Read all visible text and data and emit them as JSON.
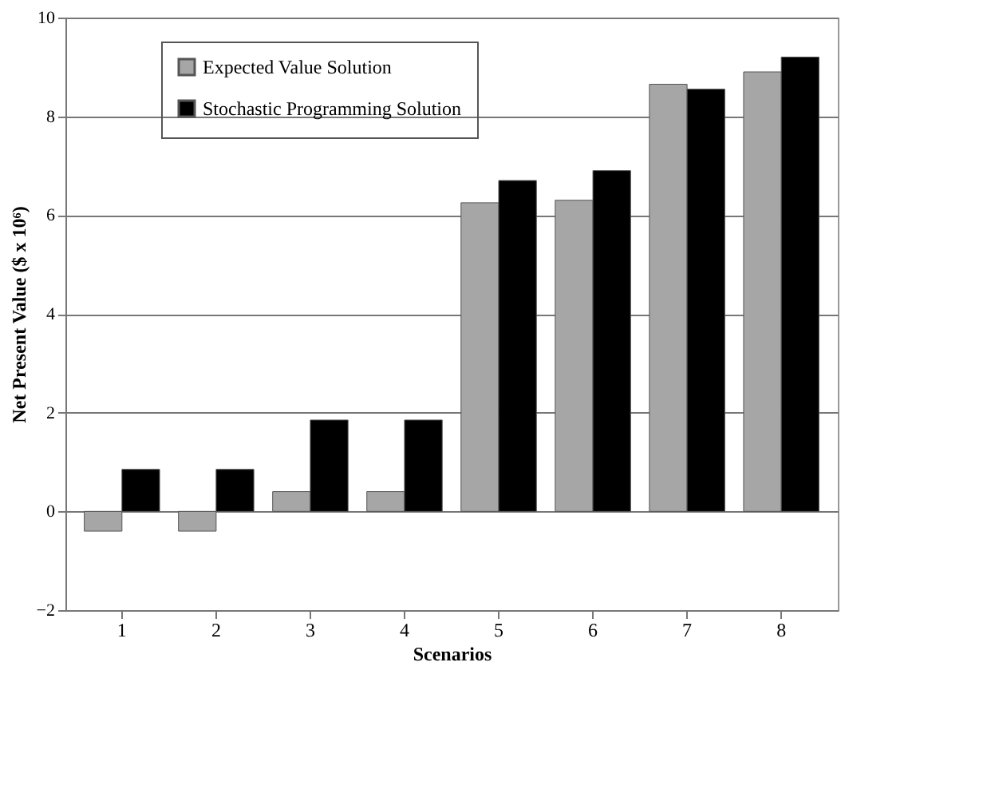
{
  "chart_data": {
    "type": "bar",
    "xlabel": "Scenarios",
    "ylabel": "Net Present Value ($ x 10⁶)",
    "categories": [
      "1",
      "2",
      "3",
      "4",
      "5",
      "6",
      "7",
      "8"
    ],
    "series": [
      {
        "name": "Expected Value Solution",
        "color": "#a6a6a6",
        "values": [
          -0.4,
          -0.4,
          0.4,
          0.4,
          6.25,
          6.3,
          8.65,
          8.9
        ]
      },
      {
        "name": "Stochastic Programming Solution",
        "color": "#000000",
        "values": [
          0.85,
          0.85,
          1.85,
          1.85,
          6.7,
          6.9,
          8.55,
          9.2
        ]
      }
    ],
    "ylim": [
      -2,
      10
    ],
    "yticks": [
      -2,
      0,
      2,
      4,
      6,
      8,
      10
    ],
    "grid": "y",
    "legend": "top left"
  }
}
